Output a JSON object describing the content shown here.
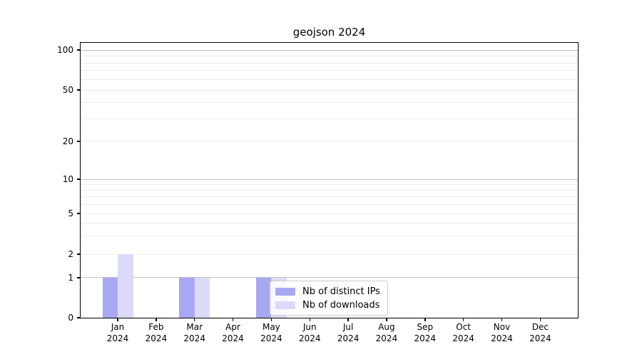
{
  "chart_data": {
    "type": "bar",
    "title": "geojson 2024",
    "categories": [
      "Jan 2024",
      "Feb 2024",
      "Mar 2024",
      "Apr 2024",
      "May 2024",
      "Jun 2024",
      "Jul 2024",
      "Aug 2024",
      "Sep 2024",
      "Oct 2024",
      "Nov 2024",
      "Dec 2024"
    ],
    "series": [
      {
        "name": "Nb of distinct IPs",
        "color": "#a8a8f2",
        "values": [
          1,
          0,
          1,
          0,
          1,
          0,
          0,
          0,
          0,
          0,
          0,
          0
        ]
      },
      {
        "name": "Nb of downloads",
        "color": "#dbdbf9",
        "values": [
          2,
          0,
          1,
          0,
          1,
          0,
          0,
          0,
          0,
          0,
          0,
          0
        ]
      }
    ],
    "xlabel": "",
    "ylabel": "",
    "y_ticks": [
      0,
      1,
      2,
      5,
      10,
      20,
      50,
      100
    ],
    "ylim": [
      0,
      110
    ],
    "yscale": "quasi-log (linear 0-1, logarithmic above)",
    "grid": "horizontal, dark lines at decades (1,10,100), faint minor lines at 2-9, 20-90",
    "legend_position": "inside plot, lower center-left",
    "colors": {
      "background": "#ffffff",
      "spine": "#000000",
      "grid_decade": "#bfbfbf",
      "grid_minor": "#eaeaea",
      "tick_label": "#000000"
    }
  }
}
